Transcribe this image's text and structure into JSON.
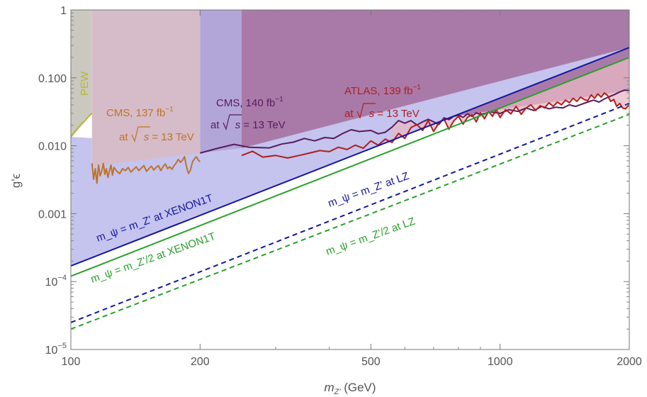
{
  "chart_data": {
    "type": "line",
    "title": "",
    "xlabel": "m_Z' (GeV)",
    "ylabel": "g'ε",
    "x_scale": "log",
    "y_scale": "log",
    "xlim": [
      100,
      2000
    ],
    "ylim": [
      1e-05,
      1
    ],
    "grid": false,
    "legend": "none",
    "x_ticks": [
      {
        "value": 100,
        "label": "100"
      },
      {
        "value": 200,
        "label": "200"
      },
      {
        "value": 500,
        "label": "500"
      },
      {
        "value": 1000,
        "label": "1000"
      },
      {
        "value": 2000,
        "label": "2000"
      }
    ],
    "y_ticks": [
      {
        "value": 1,
        "mant": "1",
        "exp": ""
      },
      {
        "value": 0.1,
        "mant": "0.100",
        "exp": ""
      },
      {
        "value": 0.01,
        "mant": "0.010",
        "exp": ""
      },
      {
        "value": 0.001,
        "mant": "0.001",
        "exp": ""
      },
      {
        "value": 0.0001,
        "mant": "10",
        "exp": "−4"
      },
      {
        "value": 1e-05,
        "mant": "10",
        "exp": "−5"
      }
    ],
    "regions": [
      {
        "name": "PEW",
        "color": "#c9c9bf",
        "x": [
          100,
          112,
          112,
          100
        ],
        "y": [
          0.013,
          0.03,
          1,
          1
        ]
      },
      {
        "name": "CMS 137",
        "color": "#d6bcc8",
        "x": [
          112,
          200,
          200,
          112
        ],
        "y": [
          0.005,
          0.006,
          1,
          1
        ]
      },
      {
        "name": "CMS 140",
        "color": "#b2a6d8",
        "x": [
          200,
          250,
          250,
          200
        ],
        "y": [
          0.0078,
          0.0092,
          1,
          1
        ]
      },
      {
        "name": "ATLAS 139 / CMS 140 high",
        "color": "#a97aa8",
        "x": [
          250,
          2000,
          2000,
          250
        ],
        "y": [
          0.0092,
          0.065,
          1,
          1
        ]
      }
    ],
    "series": [
      {
        "key": "pew",
        "color": "#b8b82e",
        "x": [
          100,
          102,
          104,
          106,
          108,
          110,
          112
        ],
        "y": [
          0.0135,
          0.016,
          0.0185,
          0.021,
          0.0235,
          0.027,
          0.03
        ]
      },
      {
        "key": "cms137",
        "color": "#c0722a",
        "x": [
          112,
          113,
          114,
          115,
          116,
          117,
          118,
          119,
          120,
          121,
          122,
          123,
          124,
          125,
          126,
          128,
          130,
          132,
          134,
          136,
          138,
          140,
          142,
          144,
          146,
          148,
          150,
          152,
          154,
          156,
          158,
          160,
          162,
          164,
          166,
          168,
          170,
          172,
          174,
          176,
          178,
          180,
          182,
          184,
          186,
          188,
          190,
          192,
          194,
          196,
          198,
          200
        ],
        "y": [
          0.0055,
          0.0032,
          0.0046,
          0.0028,
          0.0052,
          0.0036,
          0.0042,
          0.0055,
          0.0038,
          0.0046,
          0.0034,
          0.0043,
          0.0052,
          0.0037,
          0.0048,
          0.0042,
          0.0039,
          0.0046,
          0.0043,
          0.0048,
          0.0041,
          0.0045,
          0.0049,
          0.0043,
          0.0047,
          0.0051,
          0.0042,
          0.0046,
          0.005,
          0.0044,
          0.0048,
          0.0051,
          0.0043,
          0.0049,
          0.0054,
          0.0046,
          0.0049,
          0.0045,
          0.0051,
          0.0056,
          0.0063,
          0.0057,
          0.0061,
          0.0069,
          0.0049,
          0.0039,
          0.0044,
          0.0058,
          0.0064,
          0.0069,
          0.0062,
          0.0058
        ]
      },
      {
        "key": "cms140",
        "color": "#5a1a5e",
        "x": [
          200,
          220,
          240,
          260,
          290,
          310,
          330,
          350,
          370,
          390,
          410,
          430,
          450,
          470,
          500,
          520,
          540,
          560,
          580,
          600,
          620,
          640,
          660,
          680,
          700,
          720,
          740,
          760,
          780,
          800,
          820,
          840,
          860,
          880,
          900,
          950,
          1000,
          1050,
          1100,
          1150,
          1200,
          1250,
          1300,
          1350,
          1400,
          1450,
          1500,
          1550,
          1600,
          1650,
          1700,
          1750,
          1800,
          1850,
          1900,
          1950,
          2000
        ],
        "y": [
          0.0078,
          0.0092,
          0.0105,
          0.0095,
          0.0093,
          0.0106,
          0.0113,
          0.0128,
          0.0118,
          0.0132,
          0.0128,
          0.0152,
          0.0172,
          0.0162,
          0.0168,
          0.015,
          0.0158,
          0.0188,
          0.0235,
          0.0215,
          0.0235,
          0.0202,
          0.0225,
          0.0245,
          0.0225,
          0.0205,
          0.0258,
          0.0242,
          0.0272,
          0.0282,
          0.0262,
          0.0295,
          0.0272,
          0.0305,
          0.029,
          0.0315,
          0.03,
          0.034,
          0.032,
          0.036,
          0.033,
          0.038,
          0.035,
          0.037,
          0.036,
          0.04,
          0.038,
          0.041,
          0.044,
          0.047,
          0.044,
          0.049,
          0.053,
          0.057,
          0.062,
          0.066,
          0.065
        ]
      },
      {
        "key": "atlas139",
        "color": "#b01e1e",
        "x": [
          250,
          265,
          280,
          300,
          320,
          340,
          360,
          380,
          400,
          420,
          440,
          460,
          480,
          500,
          520,
          540,
          560,
          580,
          600,
          620,
          640,
          660,
          680,
          700,
          720,
          740,
          760,
          780,
          800,
          820,
          840,
          860,
          880,
          900,
          920,
          940,
          960,
          980,
          1000,
          1030,
          1060,
          1090,
          1120,
          1150,
          1180,
          1210,
          1240,
          1270,
          1300,
          1330,
          1360,
          1390,
          1420,
          1450,
          1480,
          1510,
          1540,
          1570,
          1600,
          1630,
          1660,
          1690,
          1720,
          1750,
          1780,
          1810,
          1840,
          1870,
          1900,
          1930,
          1960,
          2000
        ],
        "y": [
          0.0072,
          0.0083,
          0.0068,
          0.0072,
          0.0066,
          0.0072,
          0.0078,
          0.0085,
          0.0082,
          0.0095,
          0.0088,
          0.0102,
          0.0092,
          0.0118,
          0.0102,
          0.0125,
          0.0112,
          0.0152,
          0.0128,
          0.0185,
          0.0205,
          0.0168,
          0.0235,
          0.0162,
          0.0218,
          0.0248,
          0.0175,
          0.0232,
          0.0272,
          0.0208,
          0.0262,
          0.0288,
          0.0225,
          0.0305,
          0.025,
          0.0318,
          0.0272,
          0.0338,
          0.026,
          0.034,
          0.0295,
          0.038,
          0.029,
          0.036,
          0.04,
          0.033,
          0.039,
          0.036,
          0.043,
          0.038,
          0.044,
          0.04,
          0.047,
          0.043,
          0.05,
          0.045,
          0.052,
          0.048,
          0.046,
          0.056,
          0.05,
          0.058,
          0.052,
          0.06,
          0.055,
          0.045,
          0.048,
          0.038,
          0.042,
          0.036,
          0.035,
          0.04
        ]
      },
      {
        "key": "xenon_mz",
        "color": "#1515a0",
        "dash": false,
        "x": [
          100,
          2000
        ],
        "y": [
          0.00017,
          0.28
        ]
      },
      {
        "key": "xenon_half",
        "color": "#2aa02a",
        "dash": false,
        "x": [
          100,
          2000
        ],
        "y": [
          0.00012,
          0.2
        ]
      },
      {
        "key": "lz_mz",
        "color": "#1515a0",
        "dash": true,
        "x": [
          100,
          2000
        ],
        "y": [
          2.5e-05,
          0.042
        ]
      },
      {
        "key": "lz_half",
        "color": "#2aa02a",
        "dash": true,
        "x": [
          100,
          2000
        ],
        "y": [
          2e-05,
          0.029
        ]
      }
    ],
    "annotations": {
      "pew": "PEW",
      "cms137_line1": "CMS, 137 fb",
      "cms137_sup": "−1",
      "cms137_line2a": "at ",
      "cms137_line2b": "s",
      "cms137_line2c": " = 13 TeV",
      "cms140_line1": "CMS, 140 fb",
      "cms140_sup": "−1",
      "cms140_line2a": "at ",
      "cms140_line2b": "s",
      "cms140_line2c": " = 13 TeV",
      "atlas_line1": "ATLAS, 139 fb",
      "atlas_sup": "−1",
      "atlas_line2a": "at ",
      "atlas_line2b": "s",
      "atlas_line2c": " = 13 TeV",
      "xenon_mz": "m_ψ = m_Z' at XENON1T",
      "xenon_half": "m_ψ = m_Z'/2 at XENON1T",
      "lz_mz": "m_ψ = m_Z' at LZ",
      "lz_half": "m_ψ = m_Z'/2 at LZ"
    },
    "colors": {
      "cms137": "#c0722a",
      "cms140": "#5a1a5e",
      "atlas": "#b01e1e",
      "pew": "#b8b82e",
      "xenon_blue": "#1515a0",
      "xenon_green": "#2aa02a"
    }
  }
}
